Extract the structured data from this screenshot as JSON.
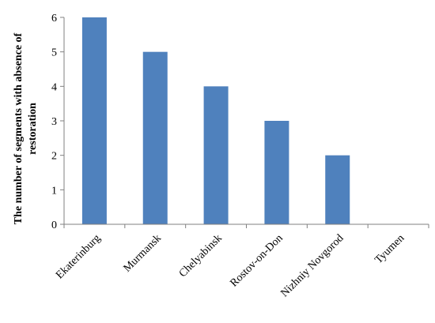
{
  "chart_data": {
    "type": "bar",
    "categories": [
      "Ekaterinburg",
      "Murmansk",
      "Chelyabinsk",
      "Rostov-on-Don",
      "Nizhniy Novgorod",
      "Tyumen"
    ],
    "values": [
      6,
      5,
      4,
      3,
      2,
      0
    ],
    "title": "",
    "xlabel": "",
    "ylabel_lines": [
      "The number of segments with absence of",
      "restoration"
    ],
    "ylim": [
      0,
      6
    ],
    "yticks": [
      "0",
      "1",
      "2",
      "3",
      "4",
      "5",
      "6"
    ],
    "grid": false,
    "legend": "none",
    "bar_color": "#4F81BD",
    "axis_color": "#808080"
  }
}
